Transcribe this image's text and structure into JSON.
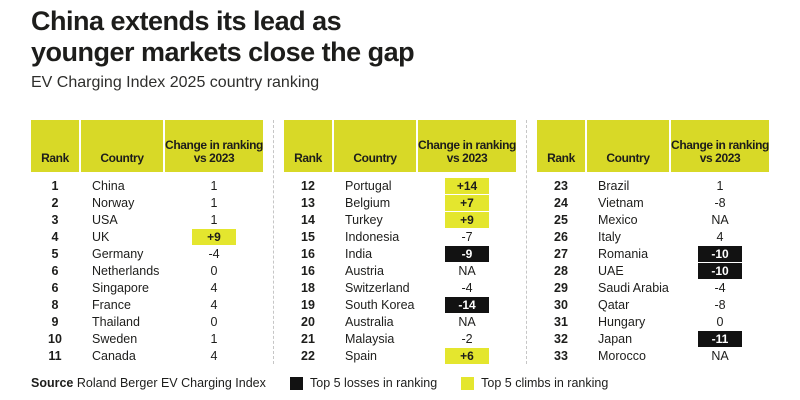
{
  "header": {
    "title_line1": "China extends its lead as",
    "title_line2": "younger markets close the gap",
    "subtitle": "EV Charging Index 2025 country ranking"
  },
  "columns": {
    "rank": "Rank",
    "country": "Country",
    "change": "Change in ranking vs 2023"
  },
  "colors": {
    "header_yellow": "#d8d927",
    "climb_yellow": "#e4e62e",
    "loss_black": "#121212",
    "text": "#1d1d1b",
    "divider": "#c6c6c6"
  },
  "footer": {
    "source_label": "Source",
    "source_text": "Roland Berger EV Charging Index",
    "legend": [
      {
        "swatch": "loss_black",
        "label": "Top 5 losses in ranking"
      },
      {
        "swatch": "climb_yellow",
        "label": "Top 5 climbs in ranking"
      }
    ]
  },
  "chart_data": {
    "type": "table",
    "title": "China extends its lead as younger markets close the gap",
    "subtitle": "EV Charging Index 2025 country ranking",
    "columns": [
      "Rank",
      "Country",
      "Change in ranking vs 2023"
    ],
    "rows_per_panel": 11,
    "rows": [
      [
        "1",
        "China",
        "1"
      ],
      [
        "2",
        "Norway",
        "1"
      ],
      [
        "3",
        "USA",
        "1"
      ],
      [
        "4",
        "UK",
        "+9"
      ],
      [
        "5",
        "Germany",
        "-4"
      ],
      [
        "6",
        "Netherlands",
        "0"
      ],
      [
        "6",
        "Singapore",
        "4"
      ],
      [
        "8",
        "France",
        "4"
      ],
      [
        "9",
        "Thailand",
        "0"
      ],
      [
        "10",
        "Sweden",
        "1"
      ],
      [
        "11",
        "Canada",
        "4"
      ],
      [
        "12",
        "Portugal",
        "+14"
      ],
      [
        "13",
        "Belgium",
        "+7"
      ],
      [
        "14",
        "Turkey",
        "+9"
      ],
      [
        "15",
        "Indonesia",
        "-7"
      ],
      [
        "16",
        "India",
        "-9"
      ],
      [
        "16",
        "Austria",
        "NA"
      ],
      [
        "18",
        "Switzerland",
        "-4"
      ],
      [
        "19",
        "South Korea",
        "-14"
      ],
      [
        "20",
        "Australia",
        "NA"
      ],
      [
        "21",
        "Malaysia",
        "-2"
      ],
      [
        "22",
        "Spain",
        "+6"
      ],
      [
        "23",
        "Brazil",
        "1"
      ],
      [
        "24",
        "Vietnam",
        "-8"
      ],
      [
        "25",
        "Mexico",
        "NA"
      ],
      [
        "26",
        "Italy",
        "4"
      ],
      [
        "27",
        "Romania",
        "-10"
      ],
      [
        "28",
        "UAE",
        "-10"
      ],
      [
        "29",
        "Saudi Arabia",
        "-4"
      ],
      [
        "30",
        "Qatar",
        "-8"
      ],
      [
        "31",
        "Hungary",
        "0"
      ],
      [
        "32",
        "Japan",
        "-11"
      ],
      [
        "33",
        "Morocco",
        "NA"
      ]
    ],
    "highlights": {
      "top5_climbs": [
        "UK",
        "Portugal",
        "Belgium",
        "Turkey",
        "Spain"
      ],
      "top5_losses": [
        "India",
        "South Korea",
        "Romania",
        "UAE",
        "Japan"
      ]
    }
  }
}
